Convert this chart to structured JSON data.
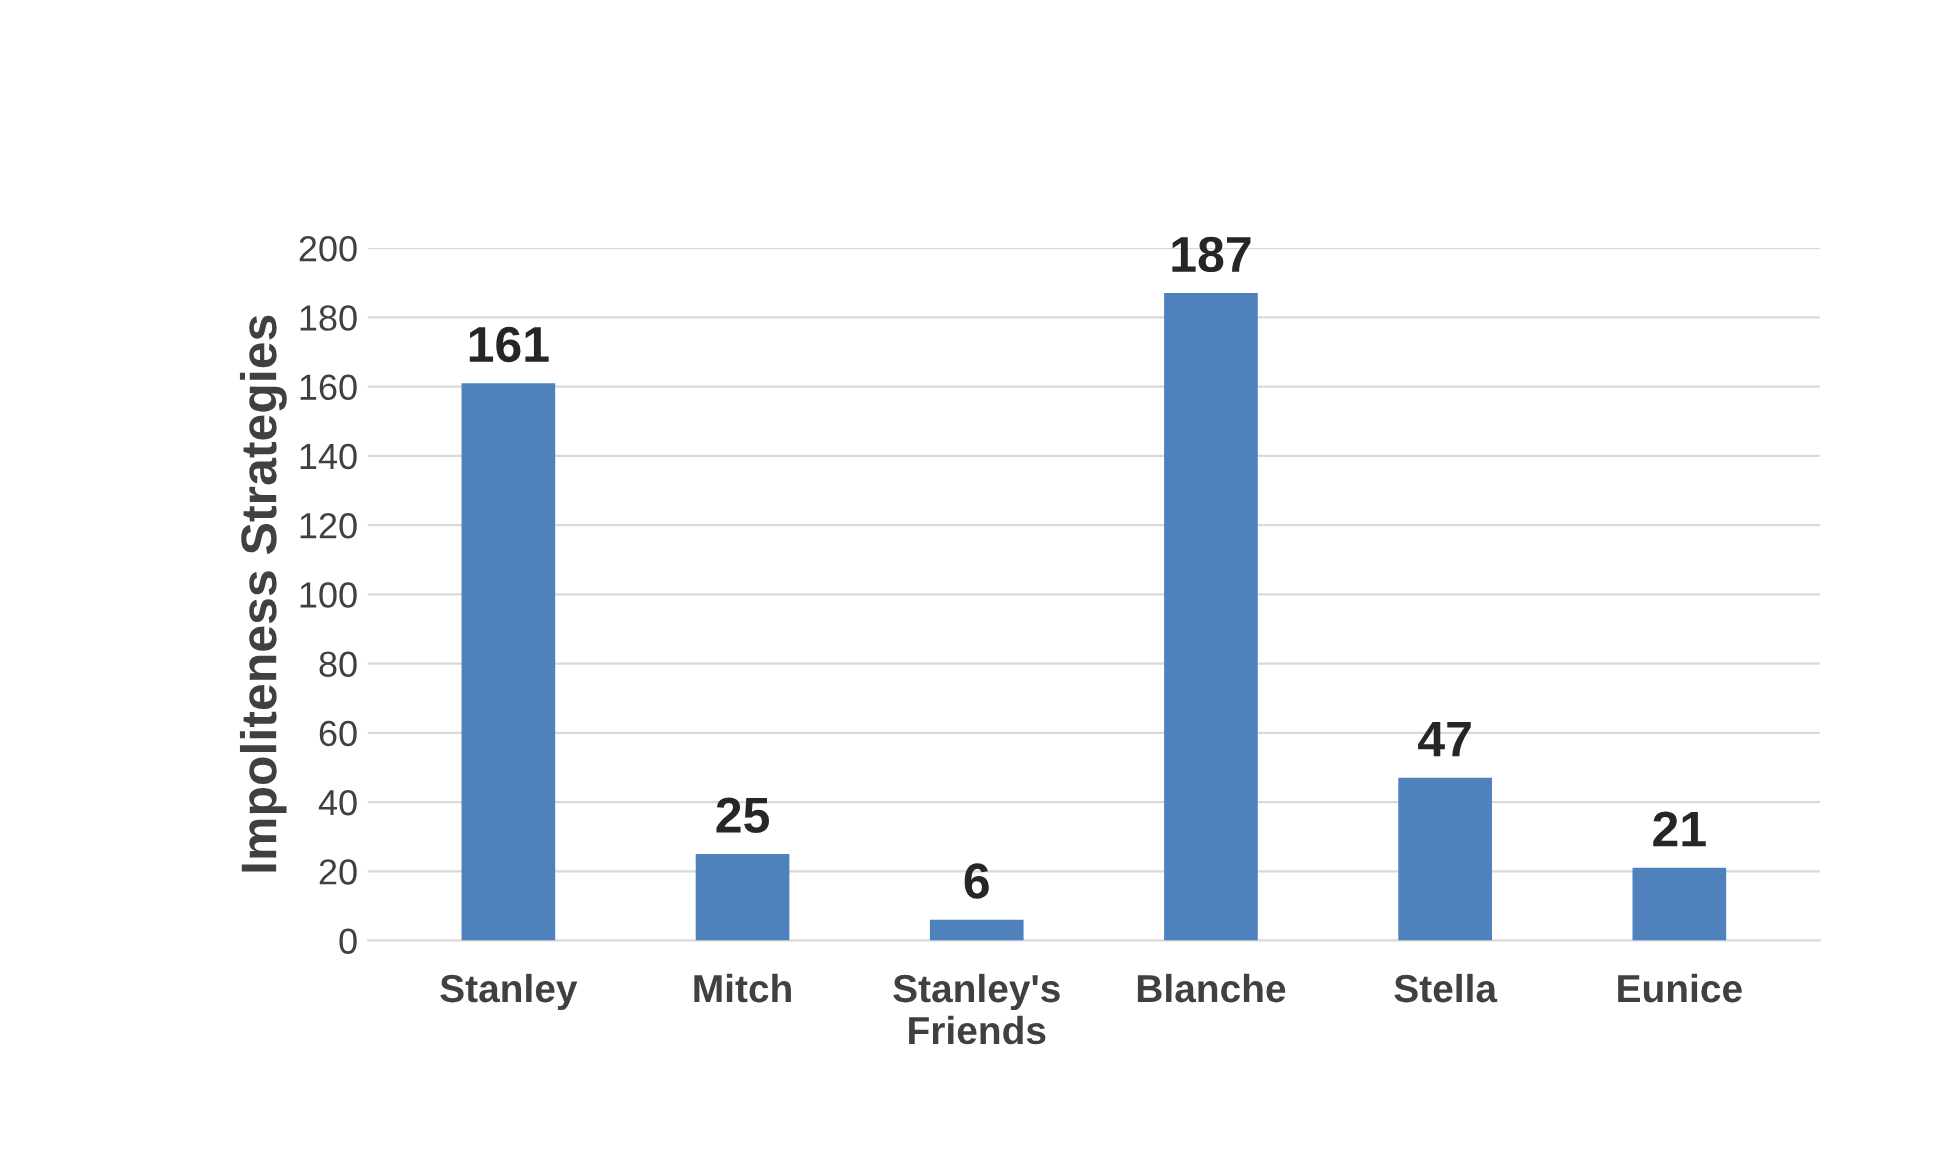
{
  "chart_data": {
    "type": "bar",
    "ylabel": "Impoliteness Strategies",
    "categories": [
      "Stanley",
      "Mitch",
      "Stanley's\nFriends",
      "Blanche",
      "Stella",
      "Eunice"
    ],
    "values": [
      161,
      25,
      6,
      187,
      47,
      21
    ],
    "color": "#4f81bd",
    "ylim": [
      0,
      200
    ],
    "yticks": [
      0,
      20,
      40,
      60,
      80,
      100,
      120,
      140,
      160,
      180,
      200
    ],
    "grid": "y",
    "data_labels": true
  }
}
